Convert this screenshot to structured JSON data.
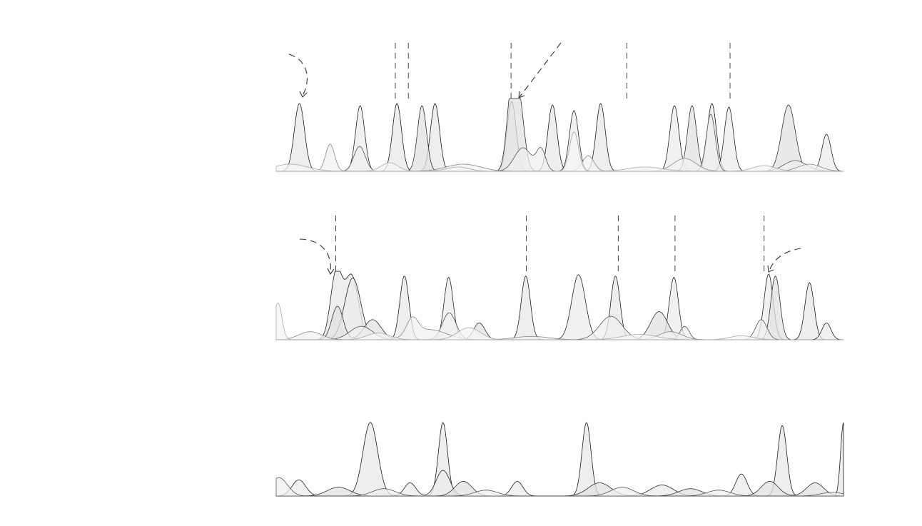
{
  "chart_data": [
    {
      "type": "area",
      "title": "",
      "xlabel": "",
      "ylabel": "",
      "xlim": [
        0,
        100
      ],
      "ylim": [
        0,
        1
      ],
      "grid": false,
      "legend": "none",
      "series": [
        {
          "peaks": [
            [
              4.1,
              0.95,
              0.9
            ],
            [
              21.3,
              0.95,
              0.8
            ],
            [
              28.0,
              0.95,
              0.8
            ],
            [
              48.7,
              0.93,
              0.8
            ],
            [
              57.2,
              0.95,
              0.8
            ],
            [
              76.8,
              0.95,
              0.8
            ]
          ]
        },
        {
          "peaks": [
            [
              14.8,
              0.92,
              0.8
            ],
            [
              41.5,
              0.98,
              0.8
            ],
            [
              52.5,
              0.85,
              0.8
            ],
            [
              70.2,
              0.92,
              0.8
            ],
            [
              79.8,
              0.9,
              0.8
            ],
            [
              97.0,
              0.52,
              0.8
            ]
          ]
        },
        {
          "peaks": [
            [
              25.7,
              0.92,
              0.8
            ],
            [
              41.4,
              0.98,
              0.8
            ],
            [
              42.8,
              0.97,
              0.9
            ],
            [
              73.3,
              0.92,
              0.8
            ],
            [
              90.3,
              0.93,
              1.2
            ]
          ]
        },
        {
          "peaks": [
            [
              14.7,
              0.35,
              1.0
            ],
            [
              43.5,
              0.33,
              1.5
            ],
            [
              46.7,
              0.3,
              0.8
            ],
            [
              76.6,
              0.8,
              0.8
            ],
            [
              91.5,
              0.15,
              2.0
            ]
          ]
        },
        {
          "peaks": [
            [
              9.5,
              0.38,
              0.8
            ],
            [
              33.0,
              0.1,
              3.0
            ],
            [
              55.0,
              0.22,
              1.0
            ],
            [
              72.0,
              0.18,
              2.0
            ],
            [
              94.0,
              0.1,
              2.0
            ]
          ]
        },
        {
          "peaks": [
            [
              2.5,
              0.1,
              3.0
            ],
            [
              20.0,
              0.12,
              1.5
            ],
            [
              32.0,
              0.06,
              2.0
            ],
            [
              52.5,
              0.55,
              0.8
            ],
            [
              65.0,
              0.06,
              3.0
            ],
            [
              86.0,
              0.08,
              2.0
            ]
          ]
        }
      ],
      "markers": [
        21.0,
        23.3,
        41.4,
        61.8,
        80.0
      ],
      "arrows": [
        "top-left",
        "upper-center"
      ]
    },
    {
      "type": "area",
      "title": "",
      "xlabel": "",
      "ylabel": "",
      "xlim": [
        0,
        100
      ],
      "ylim": [
        0,
        1
      ],
      "grid": false,
      "legend": "none",
      "series": [
        {
          "peaks": [
            [
              10.6,
              1.0,
              1.0
            ],
            [
              13.3,
              0.95,
              1.2
            ],
            [
              22.6,
              0.95,
              0.8
            ],
            [
              44.0,
              0.95,
              0.8
            ],
            [
              59.8,
              0.95,
              0.8
            ],
            [
              94.0,
              0.85,
              0.8
            ]
          ]
        },
        {
          "peaks": [
            [
              13.5,
              0.92,
              1.4
            ],
            [
              30.4,
              0.93,
              0.8
            ],
            [
              53.3,
              0.97,
              1.2
            ],
            [
              70.1,
              0.93,
              0.8
            ],
            [
              86.8,
              0.98,
              0.8
            ],
            [
              97.0,
              0.25,
              0.8
            ]
          ]
        },
        {
          "peaks": [
            [
              10.8,
              0.5,
              1.0
            ],
            [
              17.0,
              0.3,
              1.5
            ],
            [
              35.8,
              0.25,
              1.0
            ],
            [
              67.5,
              0.42,
              1.5
            ],
            [
              88.0,
              0.95,
              0.8
            ]
          ]
        },
        {
          "peaks": [
            [
              15.0,
              0.2,
              2.0
            ],
            [
              30.5,
              0.4,
              1.2
            ],
            [
              59.0,
              0.35,
              2.0
            ],
            [
              85.5,
              0.3,
              1.0
            ],
            [
              72.0,
              0.2,
              0.8
            ]
          ]
        },
        {
          "peaks": [
            [
              6.0,
              0.12,
              2.0
            ],
            [
              24.0,
              0.25,
              1.0
            ],
            [
              27.0,
              0.15,
              3.0
            ],
            [
              45.0,
              0.05,
              3.0
            ],
            [
              69.5,
              0.12,
              2.0
            ]
          ]
        },
        {
          "peaks": [
            [
              0.3,
              0.55,
              0.7
            ],
            [
              18.0,
              0.1,
              2.0
            ],
            [
              34.0,
              0.18,
              2.0
            ],
            [
              64.0,
              0.08,
              3.0
            ],
            [
              82.0,
              0.06,
              2.0
            ]
          ]
        }
      ],
      "markers": [
        10.5,
        44.1,
        60.3,
        70.3,
        86.0
      ],
      "arrows": [
        "left",
        "right"
      ]
    },
    {
      "type": "area",
      "title": "",
      "xlabel": "",
      "ylabel": "",
      "xlim": [
        0,
        100
      ],
      "ylim": [
        0,
        1
      ],
      "grid": false,
      "legend": "none",
      "series": [
        {
          "peaks": [
            [
              16.6,
              1.0,
              1.3
            ],
            [
              29.4,
              1.0,
              0.8
            ],
            [
              54.7,
              1.0,
              0.8
            ],
            [
              89.2,
              0.96,
              0.8
            ],
            [
              100.0,
              1.0,
              0.5
            ]
          ]
        },
        {
          "peaks": [
            [
              4.0,
              0.22,
              1.2
            ],
            [
              23.6,
              0.18,
              1.0
            ],
            [
              29.4,
              0.35,
              1.2
            ],
            [
              42.5,
              0.2,
              1.0
            ],
            [
              68.0,
              0.15,
              2.0
            ],
            [
              82.0,
              0.3,
              1.0
            ]
          ]
        },
        {
          "peaks": [
            [
              11.0,
              0.12,
              2.0
            ],
            [
              33.0,
              0.2,
              1.5
            ],
            [
              57.0,
              0.18,
              2.0
            ],
            [
              73.0,
              0.1,
              2.0
            ],
            [
              87.0,
              0.2,
              1.5
            ],
            [
              95.0,
              0.18,
              1.5
            ]
          ]
        },
        {
          "peaks": [
            [
              0.5,
              0.25,
              1.5
            ],
            [
              19.0,
              0.1,
              2.0
            ],
            [
              37.0,
              0.08,
              2.0
            ],
            [
              61.0,
              0.12,
              2.0
            ],
            [
              78.0,
              0.08,
              2.0
            ],
            [
              98.0,
              0.05,
              2.0
            ]
          ]
        }
      ],
      "markers": [],
      "arrows": []
    }
  ]
}
